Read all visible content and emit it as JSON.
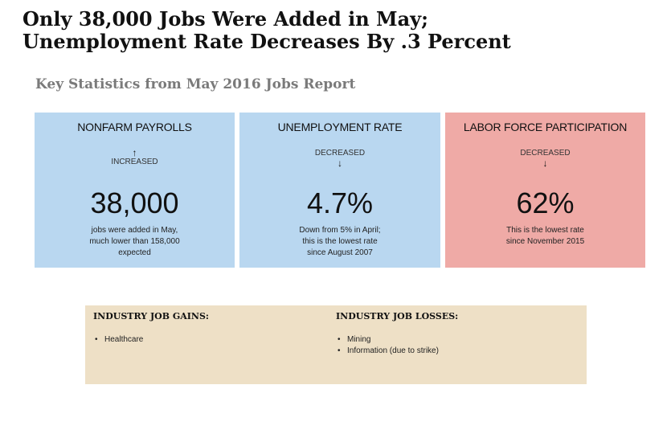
{
  "headline": {
    "line1": "Only 38,000 Jobs Were Added in May;",
    "line2": "Unemployment Rate Decreases By .3 Percent"
  },
  "subtitle": "Key Statistics from May 2016 Jobs Report",
  "cards": [
    {
      "title": "NONFARM PAYROLLS",
      "trend": "INCREASED",
      "trend_icon": "arrow-up-icon",
      "arrow": "↑",
      "value": "38,000",
      "note": [
        "jobs were added in May,",
        "much lower than 158,000",
        "expected"
      ],
      "color": "#b9d7f0"
    },
    {
      "title": "UNEMPLOYMENT RATE",
      "trend": "DECREASED",
      "trend_icon": "arrow-down-icon",
      "arrow": "↓",
      "value": "4.7%",
      "note": [
        "Down from 5% in April;",
        "this is the lowest rate",
        "since August 2007"
      ],
      "color": "#b9d7f0"
    },
    {
      "title": "LABOR FORCE PARTICIPATION",
      "trend": "DECREASED",
      "trend_icon": "arrow-down-icon",
      "arrow": "↓",
      "value": "62%",
      "note": [
        "This is the lowest rate",
        "since November 2015"
      ],
      "color": "#efaaa6"
    }
  ],
  "industry": {
    "gains_heading": "INDUSTRY JOB GAINS:",
    "gains": [
      "Healthcare"
    ],
    "losses_heading": "INDUSTRY JOB LOSSES:",
    "losses": [
      "Mining",
      "Information (due to strike)"
    ],
    "background": "#eee0c6"
  }
}
